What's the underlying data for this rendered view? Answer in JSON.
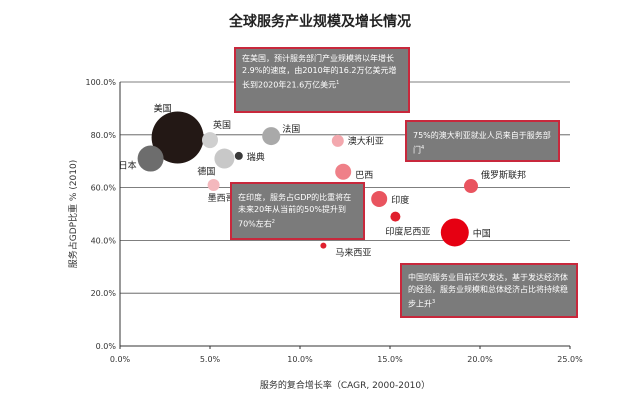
{
  "chart_data": {
    "type": "scatter",
    "title": "全球服务产业规模及增长情况",
    "xlabel": "服务的复合增长率（CAGR, 2000-2010）",
    "ylabel": "服务占GDP比重 % (2010)",
    "xlim": [
      0,
      25
    ],
    "ylim": [
      0,
      100
    ],
    "xticks": [
      "0.0%",
      "5.0%",
      "10.0%",
      "15.0%",
      "20.0%",
      "25.0%"
    ],
    "yticks": [
      "0.0%",
      "20.0%",
      "40.0%",
      "60.0%",
      "80.0%",
      "100.0%"
    ],
    "grid": "horizontal",
    "points": [
      {
        "label": "美国",
        "x": 3.2,
        "y": 79,
        "size": 26,
        "color": "#231815"
      },
      {
        "label": "日本",
        "x": 1.7,
        "y": 71,
        "size": 13,
        "color": "#6d6d6d"
      },
      {
        "label": "英国",
        "x": 5.0,
        "y": 78,
        "size": 8,
        "color": "#cfcfcf"
      },
      {
        "label": "德国",
        "x": 5.8,
        "y": 71,
        "size": 10,
        "color": "#c8c8c8"
      },
      {
        "label": "瑞典",
        "x": 6.6,
        "y": 72,
        "size": 4,
        "color": "#3a3a3a"
      },
      {
        "label": "墨西哥",
        "x": 5.2,
        "y": 61,
        "size": 6,
        "color": "#f4b8bd"
      },
      {
        "label": "法国",
        "x": 8.4,
        "y": 79.5,
        "size": 9,
        "color": "#a9a9a9"
      },
      {
        "label": "澳大利亚",
        "x": 12.1,
        "y": 77.7,
        "size": 6,
        "color": "#f3a8ae"
      },
      {
        "label": "巴西",
        "x": 12.4,
        "y": 66,
        "size": 8,
        "color": "#ef8088"
      },
      {
        "label": "印度",
        "x": 14.4,
        "y": 55.7,
        "size": 8,
        "color": "#e9545f"
      },
      {
        "label": "印度尼西亚",
        "x": 15.3,
        "y": 49,
        "size": 5,
        "color": "#e0202e"
      },
      {
        "label": "马来西亚",
        "x": 11.3,
        "y": 38,
        "size": 3,
        "color": "#e0202e"
      },
      {
        "label": "俄罗斯联邦",
        "x": 19.5,
        "y": 60.6,
        "size": 7,
        "color": "#e9545f"
      },
      {
        "label": "中国",
        "x": 18.6,
        "y": 43,
        "size": 14,
        "color": "#e60012"
      }
    ],
    "annotations": [
      {
        "text": "在美国，预计服务部门产业规模将以年增长2.9%的速度，由2010年的16.2万亿美元增长到2020年21.6万亿美元",
        "note": "1"
      },
      {
        "text": "75%的澳大利亚就业人员来自于服务部门",
        "note": "4"
      },
      {
        "text": "在印度，服务占GDP的比重将在未来20年从当前的50%提升到70%左右",
        "note": "2"
      },
      {
        "text": "中国的服务业目前还欠发达，基于发达经济体的经验，服务业规模和总体经济占比将持续稳步上升",
        "note": "3"
      }
    ]
  }
}
